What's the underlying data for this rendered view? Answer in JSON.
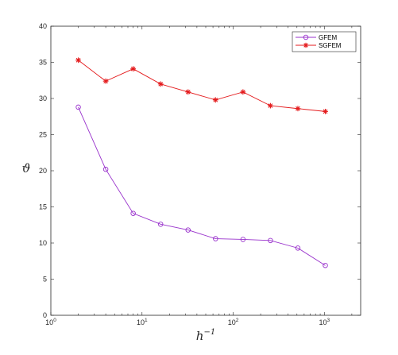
{
  "chart_data": {
    "type": "line",
    "x_scale": "log",
    "xlim": [
      1,
      2500
    ],
    "ylim": [
      0,
      40
    ],
    "x_ticks": [
      1,
      10,
      100,
      1000
    ],
    "x_tick_labels": [
      {
        "base": "10",
        "exp": "0"
      },
      {
        "base": "10",
        "exp": "1"
      },
      {
        "base": "10",
        "exp": "2"
      },
      {
        "base": "10",
        "exp": "3"
      }
    ],
    "y_ticks": [
      "0",
      "5",
      "10",
      "15",
      "20",
      "25",
      "30",
      "35",
      "40"
    ],
    "xlabel": {
      "base": "h",
      "exp": "−1"
    },
    "ylabel": "ϑ",
    "grid": false,
    "legend_position": "top-right",
    "x": [
      2,
      4,
      8,
      16,
      32,
      64,
      128,
      256,
      512,
      1024
    ],
    "series": [
      {
        "name": "GFEM",
        "color": "#9932CC",
        "marker": "circle",
        "values": [
          28.8,
          20.2,
          14.1,
          12.6,
          11.8,
          10.6,
          10.5,
          10.35,
          9.3,
          6.9
        ]
      },
      {
        "name": "SGFEM",
        "color": "#E41A1C",
        "marker": "asterisk",
        "values": [
          35.3,
          32.4,
          34.1,
          32.0,
          30.9,
          29.8,
          30.9,
          29.0,
          28.6,
          28.2
        ]
      }
    ]
  }
}
